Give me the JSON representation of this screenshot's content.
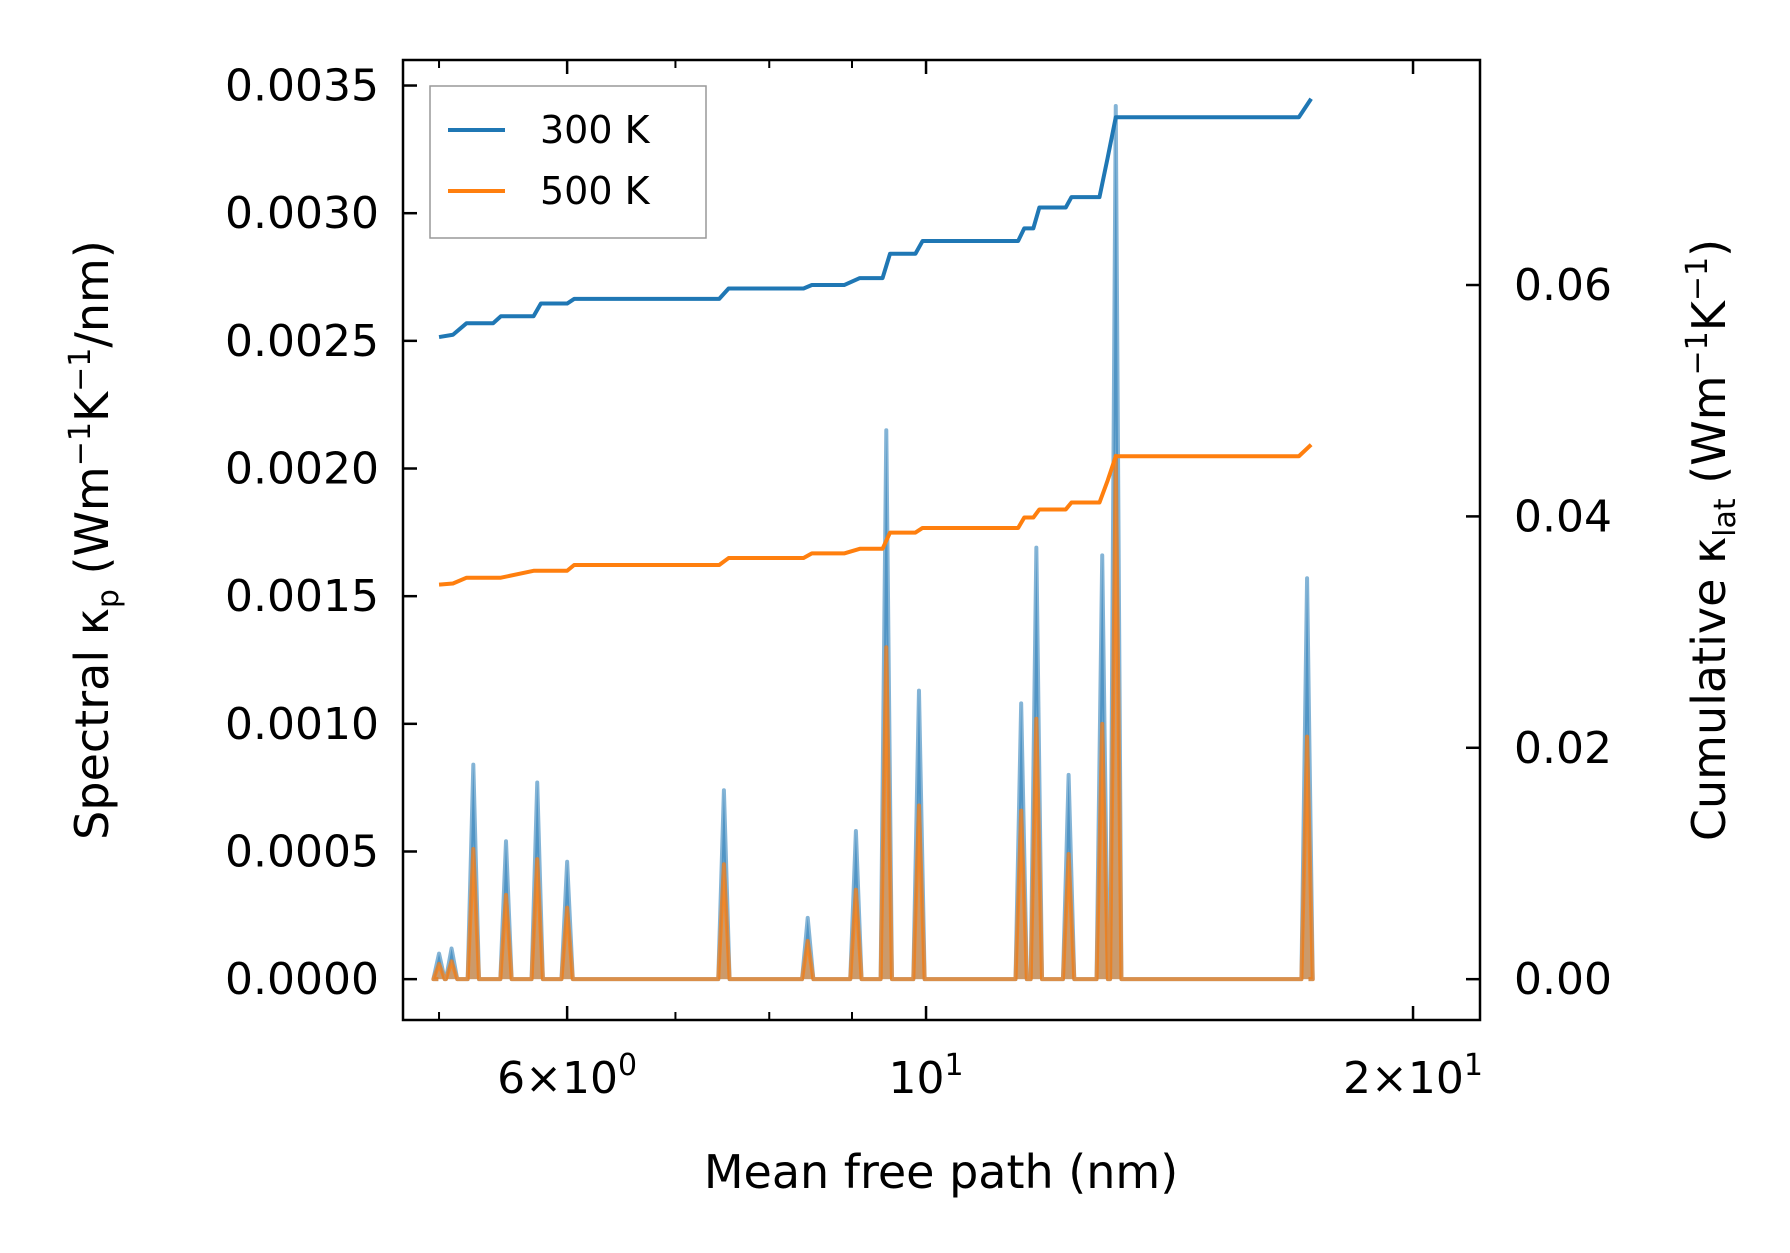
{
  "chart_data": {
    "type": "line",
    "xlabel": "Mean free path (nm)",
    "ylabel_left": {
      "main": "Spectral κ",
      "sub": "p",
      "units_pre": "(Wm",
      "sup1": "−1",
      "mid": "K",
      "sup2": "−1",
      "units_post": "/nm)"
    },
    "ylabel_right": {
      "main": "Cumulative κ",
      "sub": "lat",
      "units_pre": "(Wm",
      "sup1": "−1",
      "mid": "K",
      "sup2": "−1",
      "units_post": ")"
    },
    "x_scale": "log",
    "xlim": [
      4.75,
      22.0
    ],
    "ylim_left": [
      -0.00016,
      0.0036
    ],
    "ylim_right": [
      -0.00353,
      0.07945
    ],
    "x_ticks": [
      {
        "value": 6,
        "base": "6",
        "times": "×",
        "ten": "10",
        "exp": "0"
      },
      {
        "value": 10,
        "base": "",
        "times": "",
        "ten": "10",
        "exp": "1"
      },
      {
        "value": 20,
        "base": "2",
        "times": "×",
        "ten": "10",
        "exp": "1"
      }
    ],
    "x_minor_ticks": [
      5,
      7,
      8,
      9,
      30
    ],
    "y_left_ticks": [
      "0.0000",
      "0.0005",
      "0.0010",
      "0.0015",
      "0.0020",
      "0.0025",
      "0.0030",
      "0.0035"
    ],
    "y_left_tick_values": [
      0,
      0.0005,
      0.001,
      0.0015,
      0.002,
      0.0025,
      0.003,
      0.0035
    ],
    "y_right_ticks": [
      "0.00",
      "0.02",
      "0.04",
      "0.06"
    ],
    "y_right_tick_values": [
      0,
      0.02,
      0.04,
      0.06
    ],
    "legend": {
      "position": "top-left",
      "entries": [
        {
          "label": "300 K",
          "color": "#1f77b4"
        },
        {
          "label": "500 K",
          "color": "#ff7f0e"
        }
      ]
    },
    "series": [
      {
        "name": "300 K",
        "color": "#1f77b4",
        "spectral_peaks": [
          [
            5.0,
            0.0001
          ],
          [
            5.09,
            0.00012
          ],
          [
            5.25,
            0.00084
          ],
          [
            5.5,
            0.00054
          ],
          [
            5.75,
            0.00077
          ],
          [
            6.0,
            0.00046
          ],
          [
            7.5,
            0.00074
          ],
          [
            8.45,
            0.00024
          ],
          [
            9.05,
            0.00058
          ],
          [
            9.45,
            0.00215
          ],
          [
            9.9,
            0.00113
          ],
          [
            11.45,
            0.00108
          ],
          [
            11.7,
            0.00169
          ],
          [
            12.25,
            0.0008
          ],
          [
            12.85,
            0.00166
          ],
          [
            13.1,
            0.00342
          ],
          [
            17.2,
            0.00157
          ]
        ],
        "cumulative": [
          [
            5.0,
            0.0555
          ],
          [
            5.1,
            0.0557
          ],
          [
            5.2,
            0.0567
          ],
          [
            5.4,
            0.0567
          ],
          [
            5.46,
            0.0573
          ],
          [
            5.72,
            0.0573
          ],
          [
            5.78,
            0.0584
          ],
          [
            6.0,
            0.0584
          ],
          [
            6.06,
            0.0588
          ],
          [
            7.45,
            0.0588
          ],
          [
            7.55,
            0.0597
          ],
          [
            8.4,
            0.0597
          ],
          [
            8.5,
            0.06
          ],
          [
            8.9,
            0.06
          ],
          [
            9.1,
            0.0606
          ],
          [
            9.4,
            0.0606
          ],
          [
            9.5,
            0.0627
          ],
          [
            9.85,
            0.0627
          ],
          [
            9.95,
            0.0638
          ],
          [
            11.4,
            0.0638
          ],
          [
            11.5,
            0.0649
          ],
          [
            11.65,
            0.0649
          ],
          [
            11.75,
            0.0667
          ],
          [
            12.2,
            0.0667
          ],
          [
            12.3,
            0.0676
          ],
          [
            12.8,
            0.0676
          ],
          [
            12.95,
            0.071
          ],
          [
            13.1,
            0.0745
          ],
          [
            17.0,
            0.0745
          ],
          [
            17.3,
            0.0761
          ]
        ]
      },
      {
        "name": "500 K",
        "color": "#ff7f0e",
        "spectral_peaks": [
          [
            5.0,
            6e-05
          ],
          [
            5.09,
            7e-05
          ],
          [
            5.25,
            0.00051
          ],
          [
            5.5,
            0.00033
          ],
          [
            5.75,
            0.00047
          ],
          [
            6.0,
            0.00028
          ],
          [
            7.5,
            0.00045
          ],
          [
            8.45,
            0.00015
          ],
          [
            9.05,
            0.00035
          ],
          [
            9.45,
            0.0013
          ],
          [
            9.9,
            0.00068
          ],
          [
            11.45,
            0.00066
          ],
          [
            11.7,
            0.00102
          ],
          [
            12.25,
            0.00049
          ],
          [
            12.85,
            0.001
          ],
          [
            13.1,
            0.00205
          ],
          [
            17.2,
            0.00095
          ]
        ],
        "cumulative": [
          [
            5.0,
            0.0341
          ],
          [
            5.1,
            0.0342
          ],
          [
            5.2,
            0.0347
          ],
          [
            5.46,
            0.0347
          ],
          [
            5.72,
            0.0353
          ],
          [
            6.0,
            0.0353
          ],
          [
            6.06,
            0.0358
          ],
          [
            7.45,
            0.0358
          ],
          [
            7.55,
            0.0364
          ],
          [
            8.4,
            0.0364
          ],
          [
            8.5,
            0.0368
          ],
          [
            8.9,
            0.0368
          ],
          [
            9.1,
            0.0372
          ],
          [
            9.4,
            0.0372
          ],
          [
            9.5,
            0.0386
          ],
          [
            9.85,
            0.0386
          ],
          [
            9.95,
            0.039
          ],
          [
            11.4,
            0.039
          ],
          [
            11.5,
            0.0399
          ],
          [
            11.65,
            0.0399
          ],
          [
            11.75,
            0.0406
          ],
          [
            12.2,
            0.0406
          ],
          [
            12.3,
            0.0412
          ],
          [
            12.8,
            0.0412
          ],
          [
            12.95,
            0.0431
          ],
          [
            13.1,
            0.0452
          ],
          [
            17.0,
            0.0452
          ],
          [
            17.3,
            0.0462
          ]
        ]
      }
    ]
  }
}
